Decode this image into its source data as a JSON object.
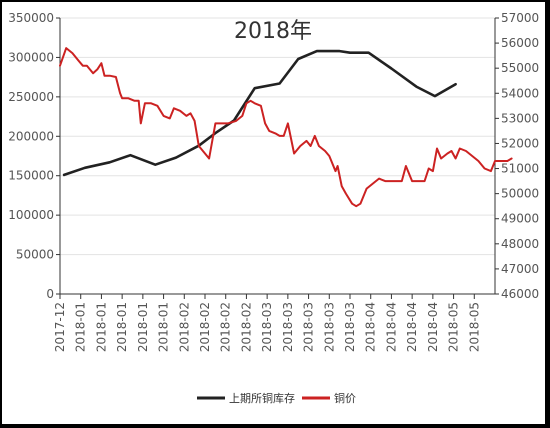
{
  "chart_data": {
    "type": "line",
    "title": "2018年",
    "xlabel": "",
    "ylabel_left": "",
    "ylabel_right": "",
    "x_tick_labels": [
      "2017-12",
      "2018-01",
      "2018-01",
      "2018-01",
      "2018-01",
      "2018-01",
      "2018-02",
      "2018-02",
      "2018-02",
      "2018-02",
      "2018-03",
      "2018-03",
      "2018-03",
      "2018-03",
      "2018-03",
      "2018-04",
      "2018-04",
      "2018-04",
      "2018-04",
      "2018-05",
      "2018-05"
    ],
    "y_left": {
      "min": 0,
      "max": 350000,
      "ticks": [
        0,
        50000,
        100000,
        150000,
        200000,
        250000,
        300000,
        350000
      ],
      "tick_labels": [
        "0",
        "50000",
        "100000",
        "150000",
        "200000",
        "250000",
        "300000",
        "350000"
      ]
    },
    "y_right": {
      "min": 46000,
      "max": 57000,
      "ticks": [
        46000,
        47000,
        48000,
        49000,
        50000,
        51000,
        52000,
        53000,
        54000,
        55000,
        56000,
        57000
      ],
      "tick_labels": [
        "46000",
        "47000",
        "48000",
        "49000",
        "50000",
        "51000",
        "52000",
        "53000",
        "54000",
        "55000",
        "56000",
        "57000"
      ]
    },
    "grid": true,
    "legend_position": "bottom",
    "series": [
      {
        "name": "上期所铜库存",
        "axis": "left",
        "color": "#222222",
        "values": [
          [
            0.2,
            151000
          ],
          [
            1.2,
            160000
          ],
          [
            2.4,
            167000
          ],
          [
            3.4,
            176000
          ],
          [
            4.6,
            164000
          ],
          [
            5.6,
            173000
          ],
          [
            6.7,
            188000
          ],
          [
            7.5,
            204000
          ],
          [
            8.4,
            220000
          ],
          [
            9.4,
            261000
          ],
          [
            10.6,
            267000
          ],
          [
            11.5,
            298000
          ],
          [
            12.4,
            308000
          ],
          [
            13.5,
            308000
          ],
          [
            14.0,
            306000
          ],
          [
            14.9,
            306000
          ],
          [
            16.0,
            286000
          ],
          [
            17.2,
            263000
          ],
          [
            18.1,
            251000
          ],
          [
            19.1,
            266000
          ]
        ]
      },
      {
        "name": "铜价",
        "axis": "right",
        "color": "#cc2222",
        "values": [
          [
            0.0,
            55100
          ],
          [
            0.3,
            55800
          ],
          [
            0.6,
            55600
          ],
          [
            0.9,
            55300
          ],
          [
            1.1,
            55100
          ],
          [
            1.3,
            55100
          ],
          [
            1.6,
            54800
          ],
          [
            1.8,
            54950
          ],
          [
            2.0,
            55200
          ],
          [
            2.15,
            54700
          ],
          [
            2.4,
            54700
          ],
          [
            2.7,
            54650
          ],
          [
            2.9,
            54000
          ],
          [
            3.0,
            53800
          ],
          [
            3.3,
            53800
          ],
          [
            3.6,
            53700
          ],
          [
            3.8,
            53700
          ],
          [
            3.9,
            52800
          ],
          [
            4.1,
            53600
          ],
          [
            4.4,
            53600
          ],
          [
            4.7,
            53500
          ],
          [
            5.0,
            53100
          ],
          [
            5.3,
            53000
          ],
          [
            5.5,
            53400
          ],
          [
            5.8,
            53300
          ],
          [
            6.1,
            53100
          ],
          [
            6.3,
            53200
          ],
          [
            6.5,
            52900
          ],
          [
            6.7,
            51900
          ],
          [
            7.0,
            51600
          ],
          [
            7.2,
            51400
          ],
          [
            7.5,
            52800
          ],
          [
            7.8,
            52800
          ],
          [
            8.1,
            52800
          ],
          [
            8.5,
            52900
          ],
          [
            8.8,
            53100
          ],
          [
            9.0,
            53600
          ],
          [
            9.2,
            53700
          ],
          [
            9.4,
            53600
          ],
          [
            9.7,
            53500
          ],
          [
            9.9,
            52800
          ],
          [
            10.1,
            52500
          ],
          [
            10.4,
            52400
          ],
          [
            10.6,
            52300
          ],
          [
            10.8,
            52300
          ],
          [
            11.0,
            52800
          ],
          [
            11.3,
            51600
          ],
          [
            11.6,
            51900
          ],
          [
            11.9,
            52100
          ],
          [
            12.1,
            51900
          ],
          [
            12.3,
            52300
          ],
          [
            12.5,
            51900
          ],
          [
            12.8,
            51700
          ],
          [
            13.0,
            51500
          ],
          [
            13.3,
            50900
          ],
          [
            13.4,
            51100
          ],
          [
            13.6,
            50300
          ],
          [
            13.8,
            50000
          ],
          [
            14.1,
            49600
          ],
          [
            14.3,
            49500
          ],
          [
            14.5,
            49600
          ],
          [
            14.8,
            50200
          ],
          [
            15.1,
            50400
          ],
          [
            15.4,
            50600
          ],
          [
            15.7,
            50500
          ],
          [
            16.0,
            50500
          ],
          [
            16.3,
            50500
          ],
          [
            16.5,
            50500
          ],
          [
            16.7,
            51100
          ],
          [
            17.0,
            50500
          ],
          [
            17.3,
            50500
          ],
          [
            17.6,
            50500
          ],
          [
            17.8,
            51000
          ],
          [
            18.0,
            50900
          ],
          [
            18.2,
            51800
          ],
          [
            18.4,
            51400
          ],
          [
            18.7,
            51600
          ],
          [
            18.9,
            51700
          ],
          [
            19.1,
            51400
          ],
          [
            19.3,
            51800
          ],
          [
            19.6,
            51700
          ],
          [
            19.9,
            51500
          ],
          [
            20.2,
            51300
          ],
          [
            20.5,
            51000
          ],
          [
            20.8,
            50900
          ],
          [
            21.0,
            51300
          ],
          [
            21.3,
            51300
          ],
          [
            21.6,
            51300
          ],
          [
            21.8,
            51400
          ]
        ]
      }
    ]
  }
}
